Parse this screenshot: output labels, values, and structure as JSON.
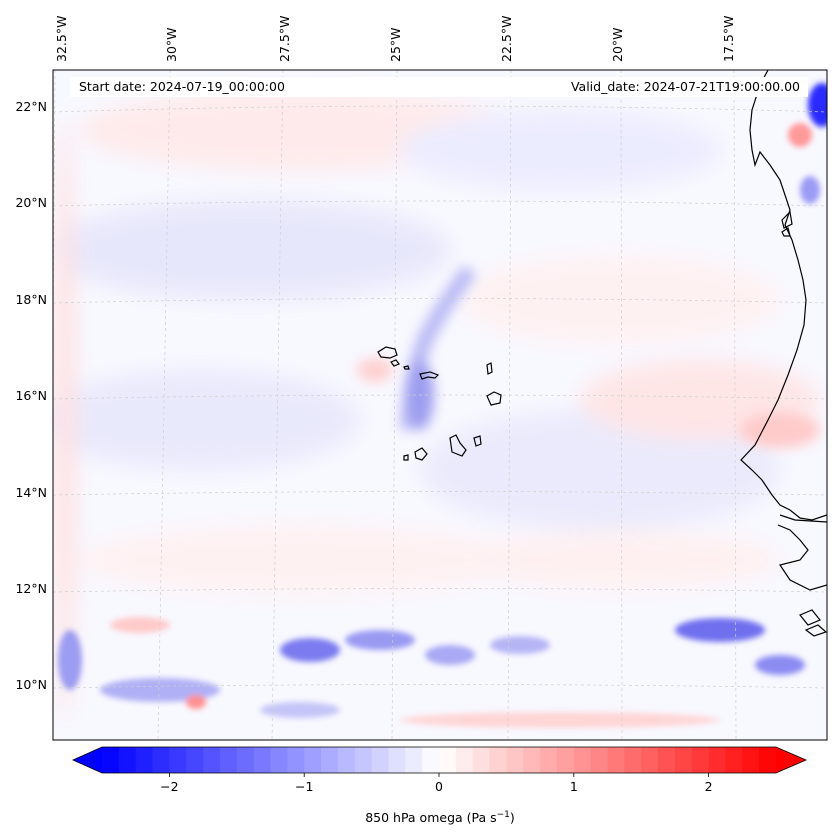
{
  "map": {
    "start_date": "Start date: 2024-07-19_00:00:00",
    "valid_date": "Valid_date: 2024-07-21T19:00:00.00",
    "lon_labels": [
      "32.5°W",
      "30°W",
      "27.5°W",
      "25°W",
      "22.5°W",
      "20°W",
      "17.5°W"
    ],
    "lat_labels": [
      "22°N",
      "20°N",
      "18°N",
      "16°N",
      "14°N",
      "12°N",
      "10°N"
    ],
    "field_variable": "850 hPa omega"
  },
  "colorbar": {
    "label_prefix": "850 hPa omega (Pa s",
    "label_exponent": "−1",
    "label_suffix": ")",
    "ticks": [
      "−2",
      "−1",
      "0",
      "1",
      "2"
    ],
    "tick_values": [
      -2,
      -1,
      0,
      1,
      2
    ],
    "range": [
      -2.5,
      2.5
    ],
    "low_color": "#0000ff",
    "mid_color": "#ffffff",
    "high_color": "#ff0000"
  }
}
